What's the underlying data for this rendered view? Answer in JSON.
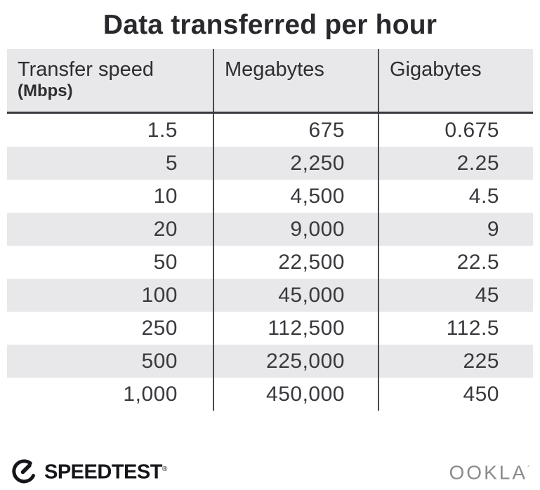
{
  "title": "Data transferred per hour",
  "table": {
    "header": {
      "col1_label": "Transfer speed",
      "col1_sublabel": "(Mbps)",
      "col2_label": "Megabytes",
      "col3_label": "Gigabytes"
    },
    "rows": [
      [
        "1.5",
        "675",
        "0.675"
      ],
      [
        "5",
        "2,250",
        "2.25"
      ],
      [
        "10",
        "4,500",
        "4.5"
      ],
      [
        "20",
        "9,000",
        "9"
      ],
      [
        "50",
        "22,500",
        "22.5"
      ],
      [
        "100",
        "45,000",
        "45"
      ],
      [
        "250",
        "112,500",
        "112.5"
      ],
      [
        "500",
        "225,000",
        "225"
      ],
      [
        "1,000",
        "450,000",
        "450"
      ]
    ]
  },
  "chart_data": {
    "type": "table",
    "title": "Data transferred per hour",
    "columns": [
      "Transfer speed (Mbps)",
      "Megabytes",
      "Gigabytes"
    ],
    "rows": [
      [
        1.5,
        675,
        0.675
      ],
      [
        5,
        2250,
        2.25
      ],
      [
        10,
        4500,
        4.5
      ],
      [
        20,
        9000,
        9
      ],
      [
        50,
        22500,
        22.5
      ],
      [
        100,
        45000,
        45
      ],
      [
        250,
        112500,
        112.5
      ],
      [
        500,
        225000,
        225
      ],
      [
        1000,
        450000,
        450
      ]
    ],
    "layout": {
      "striped_rows": true,
      "stripe_start": "white",
      "column_dividers": true,
      "header_underline": true
    }
  },
  "footer": {
    "speedtest_label": "SPEEDTEST",
    "speedtest_mark": "®",
    "ookla_label": "OOKLA",
    "ookla_mark": "´"
  },
  "colors": {
    "stripe": "#e8e7ea",
    "text": "#2e2d31",
    "divider_line": "#4a494d",
    "header_underline": "#39383c",
    "ookla_gray": "#8b8a8e",
    "brand_black": "#161519"
  }
}
